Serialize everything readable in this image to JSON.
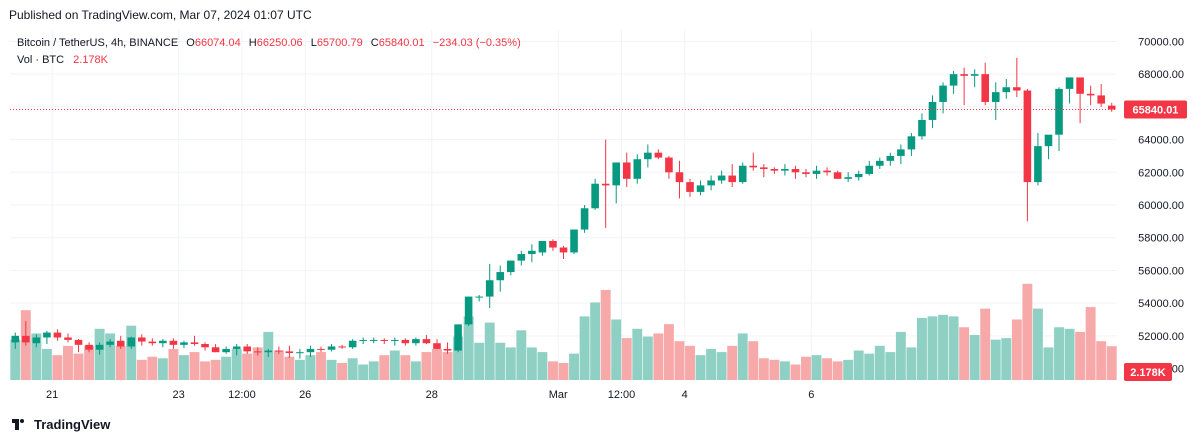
{
  "header": {
    "published": "Published on TradingView.com, Mar 07, 2024 01:07 UTC"
  },
  "legend": {
    "symbol": "Bitcoin / TetherUS, 4h, BINANCE",
    "o_label": "O",
    "o_value": "66074.04",
    "h_label": "H",
    "h_value": "66250.06",
    "l_label": "L",
    "l_value": "65700.79",
    "c_label": "C",
    "c_value": "65840.01",
    "change": "−234.03 (−0.35%)",
    "vol_label": "Vol · BTC",
    "vol_value": "2.178K"
  },
  "footer": {
    "brand": "TradingView"
  },
  "colors": {
    "up": "#089981",
    "down": "#f23645",
    "up_vol": "#8ed0c4",
    "down_vol": "#f7a9a9",
    "grid": "#f0f3fa",
    "axis_text": "#131722"
  },
  "chart_data": {
    "type": "candlestick",
    "symbol": "Bitcoin / TetherUS",
    "interval": "4h",
    "exchange": "BINANCE",
    "ylim": [
      49300,
      70700
    ],
    "y_ticks": [
      "70000.00",
      "68000.00",
      "66000.00",
      "64000.00",
      "62000.00",
      "60000.00",
      "58000.00",
      "56000.00",
      "54000.00",
      "52000.00",
      "50000.00"
    ],
    "y_tick_values": [
      70000,
      68000,
      66000,
      64000,
      62000,
      60000,
      58000,
      56000,
      54000,
      52000,
      50000
    ],
    "x_ticks": [
      {
        "label": "21",
        "index": 3.5
      },
      {
        "label": "23",
        "index": 15.5
      },
      {
        "label": "12:00",
        "index": 21.5
      },
      {
        "label": "26",
        "index": 27.5
      },
      {
        "label": "28",
        "index": 39.5
      },
      {
        "label": "Mar",
        "index": 51.5
      },
      {
        "label": "12:00",
        "index": 57.5
      },
      {
        "label": "4",
        "index": 63.5
      },
      {
        "label": "6",
        "index": 75.5
      }
    ],
    "last_price": 65840.01,
    "last_price_label": "65840.01",
    "last_volume_label": "2.178K",
    "volume_scale_max": 5.8,
    "candles": [
      [
        51600,
        52200,
        51200,
        52000,
        2.6
      ],
      [
        52000,
        52900,
        51400,
        51600,
        4.5
      ],
      [
        51550,
        52100,
        51300,
        51900,
        3.0
      ],
      [
        51900,
        52300,
        51500,
        52200,
        2.0
      ],
      [
        52200,
        52400,
        51700,
        51900,
        1.6
      ],
      [
        51900,
        52150,
        51600,
        51750,
        2.2
      ],
      [
        51750,
        51800,
        51000,
        51450,
        1.7
      ],
      [
        51450,
        51600,
        51000,
        51150,
        2.2
      ],
      [
        51150,
        51600,
        50850,
        51450,
        3.3
      ],
      [
        51450,
        51800,
        51300,
        51650,
        3.0
      ],
      [
        51700,
        52000,
        51200,
        51350,
        2.2
      ],
      [
        51350,
        51950,
        51200,
        51900,
        3.5
      ],
      [
        51900,
        52100,
        51400,
        51650,
        1.3
      ],
      [
        51650,
        51850,
        51400,
        51550,
        1.5
      ],
      [
        51550,
        51800,
        51300,
        51700,
        1.4
      ],
      [
        51700,
        51850,
        51200,
        51450,
        2.0
      ],
      [
        51450,
        51700,
        51250,
        51600,
        1.6
      ],
      [
        51600,
        52000,
        51400,
        51500,
        1.8
      ],
      [
        51500,
        51600,
        51100,
        51300,
        1.2
      ],
      [
        51300,
        51500,
        51000,
        51000,
        1.3
      ],
      [
        51000,
        51350,
        50900,
        51200,
        1.5
      ],
      [
        51200,
        51500,
        50800,
        51350,
        2.0
      ],
      [
        51350,
        51500,
        50900,
        51050,
        1.7
      ],
      [
        51050,
        51300,
        50800,
        51000,
        2.1
      ],
      [
        51000,
        51200,
        50700,
        51100,
        3.1
      ],
      [
        51100,
        51350,
        50900,
        51050,
        1.9
      ],
      [
        51050,
        51400,
        50650,
        50950,
        1.5
      ],
      [
        50950,
        51200,
        50600,
        51000,
        1.3
      ],
      [
        51000,
        51400,
        50700,
        51200,
        1.6
      ],
      [
        51200,
        51350,
        51000,
        51150,
        1.8
      ],
      [
        51150,
        51500,
        51050,
        51350,
        1.3
      ],
      [
        51350,
        51450,
        51200,
        51300,
        1.1
      ],
      [
        51300,
        51800,
        51200,
        51700,
        1.4
      ],
      [
        51700,
        51900,
        51500,
        51750,
        1.0
      ],
      [
        51750,
        51900,
        51550,
        51750,
        1.2
      ],
      [
        51750,
        51850,
        51500,
        51700,
        1.6
      ],
      [
        51700,
        51900,
        51400,
        51750,
        1.9
      ],
      [
        51750,
        51850,
        51400,
        51550,
        1.6
      ],
      [
        51550,
        51900,
        51400,
        51800,
        1.2
      ],
      [
        51800,
        52050,
        51500,
        51550,
        1.8
      ],
      [
        51550,
        51800,
        51200,
        51200,
        2.0
      ],
      [
        51200,
        51600,
        50900,
        51100,
        1.8
      ],
      [
        51100,
        52700,
        51000,
        52700,
        2.8
      ],
      [
        52700,
        54400,
        52600,
        54400,
        4.1
      ],
      [
        54400,
        54500,
        54100,
        54400,
        2.4
      ],
      [
        54400,
        56400,
        53700,
        55400,
        3.7
      ],
      [
        55400,
        56300,
        54700,
        55900,
        2.4
      ],
      [
        55900,
        56600,
        55700,
        56600,
        2.1
      ],
      [
        56600,
        57200,
        56300,
        57000,
        3.2
      ],
      [
        57000,
        57600,
        56500,
        57200,
        2.1
      ],
      [
        57100,
        57800,
        56900,
        57800,
        1.8
      ],
      [
        57800,
        57900,
        57200,
        57400,
        1.2
      ],
      [
        57400,
        57500,
        56700,
        57100,
        1.1
      ],
      [
        57100,
        58500,
        57000,
        58500,
        1.7
      ],
      [
        58500,
        60000,
        58300,
        59800,
        4.1
      ],
      [
        59800,
        61600,
        59700,
        61300,
        5.0
      ],
      [
        61300,
        64000,
        58600,
        61200,
        5.8
      ],
      [
        61200,
        62600,
        60100,
        62600,
        3.9
      ],
      [
        62600,
        63200,
        61100,
        61600,
        2.7
      ],
      [
        61600,
        63100,
        61300,
        62800,
        3.3
      ],
      [
        62800,
        63700,
        62300,
        63200,
        2.8
      ],
      [
        63200,
        63400,
        62800,
        62900,
        3.0
      ],
      [
        62900,
        63000,
        61600,
        62000,
        3.6
      ],
      [
        62000,
        62700,
        60400,
        61400,
        2.5
      ],
      [
        61400,
        61600,
        60500,
        60800,
        2.2
      ],
      [
        60800,
        61500,
        60600,
        61200,
        1.6
      ],
      [
        61200,
        61800,
        60900,
        61500,
        2.0
      ],
      [
        61500,
        62100,
        61300,
        61800,
        1.8
      ],
      [
        61800,
        62500,
        61100,
        61400,
        2.2
      ],
      [
        61400,
        62600,
        61300,
        62400,
        3.0
      ],
      [
        62400,
        63200,
        62100,
        62300,
        2.5
      ],
      [
        62300,
        62500,
        61700,
        62200,
        1.4
      ],
      [
        62200,
        62300,
        61900,
        62100,
        1.3
      ],
      [
        62100,
        62500,
        61800,
        62200,
        1.2
      ],
      [
        62200,
        62400,
        61600,
        62000,
        1.0
      ],
      [
        62000,
        62200,
        61700,
        61900,
        1.5
      ],
      [
        61900,
        62400,
        61600,
        62100,
        1.6
      ],
      [
        62100,
        62300,
        61800,
        62000,
        1.4
      ],
      [
        62000,
        62100,
        61600,
        61600,
        1.2
      ],
      [
        61600,
        62000,
        61400,
        61700,
        1.3
      ],
      [
        61700,
        62100,
        61500,
        61900,
        1.9
      ],
      [
        61900,
        62700,
        61800,
        62400,
        1.7
      ],
      [
        62400,
        62900,
        62200,
        62700,
        2.2
      ],
      [
        62700,
        63200,
        62400,
        63000,
        1.8
      ],
      [
        63000,
        63700,
        62500,
        63400,
        3.1
      ],
      [
        63400,
        64400,
        63000,
        64200,
        2.1
      ],
      [
        64200,
        65600,
        64000,
        65200,
        4.0
      ],
      [
        65200,
        66700,
        64700,
        66300,
        4.1
      ],
      [
        66300,
        67500,
        65600,
        67300,
        4.2
      ],
      [
        67300,
        68200,
        66800,
        68000,
        4.1
      ],
      [
        68000,
        68400,
        66100,
        67900,
        3.4
      ],
      [
        67900,
        68300,
        67200,
        68000,
        2.9
      ],
      [
        68000,
        68700,
        66100,
        66300,
        4.6
      ],
      [
        66300,
        67500,
        65200,
        66900,
        2.6
      ],
      [
        66900,
        67700,
        66500,
        67200,
        2.7
      ],
      [
        67200,
        69000,
        66600,
        67000,
        3.9
      ],
      [
        67000,
        67100,
        59000,
        61400,
        6.2
      ],
      [
        61400,
        64400,
        61200,
        63600,
        4.6
      ],
      [
        63600,
        64100,
        62800,
        64300,
        2.1
      ],
      [
        64300,
        67200,
        63300,
        67100,
        3.4
      ],
      [
        67100,
        67700,
        66200,
        67800,
        3.3
      ],
      [
        67800,
        67600,
        65000,
        66800,
        3.1
      ],
      [
        66800,
        67300,
        66100,
        66700,
        4.7
      ],
      [
        66700,
        67400,
        66000,
        66200,
        2.5
      ],
      [
        66074.04,
        66250.06,
        65700.79,
        65840.01,
        2.178
      ]
    ]
  }
}
